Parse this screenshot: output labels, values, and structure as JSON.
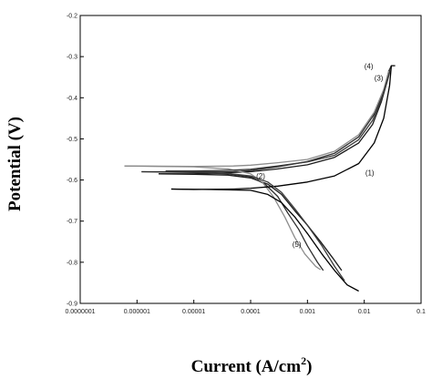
{
  "chart_data": {
    "type": "line",
    "title": "",
    "xlabel": "Current (A/cm",
    "xlabel_sup": "2",
    "xlabel_end": ")",
    "ylabel": "Potential (V)",
    "xscale": "log",
    "xlim": [
      1e-07,
      0.1
    ],
    "ylim": [
      -0.9,
      -0.2
    ],
    "grid": false,
    "x_tick_labels": [
      "0.0000001",
      "0.000001",
      "0.00001",
      "0.0001",
      "0.001",
      "0.01",
      "0.1"
    ],
    "x_ticks": [
      1e-07,
      1e-06,
      1e-05,
      0.0001,
      0.001,
      0.01,
      0.1
    ],
    "y_tick_labels": [
      "-0.2",
      "-0.3",
      "-0.4",
      "-0.5",
      "-0.6",
      "-0.7",
      "-0.8",
      "-0.9"
    ],
    "y_ticks": [
      -0.2,
      -0.3,
      -0.4,
      -0.5,
      -0.6,
      -0.7,
      -0.8,
      -0.9
    ],
    "curve_labels": [
      {
        "text": "(1)",
        "x": 0.0125,
        "y": -0.589
      },
      {
        "text": "(2)",
        "x": 0.00015,
        "y": -0.596
      },
      {
        "text": "(3)",
        "x": 0.018,
        "y": -0.358
      },
      {
        "text": "(4)",
        "x": 0.012,
        "y": -0.33
      },
      {
        "text": "(5)",
        "x": 0.00065,
        "y": -0.763
      }
    ],
    "series": [
      {
        "color": "#1a1a1a",
        "anodic": [
          [
            2.4e-06,
            -0.585
          ],
          [
            1e-05,
            -0.585
          ],
          [
            3e-05,
            -0.583
          ],
          [
            0.0001,
            -0.58
          ],
          [
            0.0003,
            -0.573
          ],
          [
            0.001,
            -0.563
          ],
          [
            0.003,
            -0.545
          ],
          [
            0.008,
            -0.51
          ],
          [
            0.014,
            -0.465
          ],
          [
            0.02,
            -0.41
          ],
          [
            0.026,
            -0.355
          ],
          [
            0.03,
            -0.322
          ]
        ],
        "cathodic": [
          [
            2.4e-06,
            -0.585
          ],
          [
            1e-05,
            -0.586
          ],
          [
            4e-05,
            -0.588
          ],
          [
            0.0001,
            -0.595
          ],
          [
            0.0002,
            -0.61
          ],
          [
            0.00035,
            -0.635
          ],
          [
            0.0006,
            -0.675
          ],
          [
            0.001,
            -0.71
          ],
          [
            0.0017,
            -0.75
          ],
          [
            0.0028,
            -0.79
          ],
          [
            0.004,
            -0.82
          ]
        ]
      },
      {
        "color": "#2e2e2e",
        "anodic": [
          [
            1.2e-06,
            -0.58
          ],
          [
            1e-05,
            -0.58
          ],
          [
            5e-05,
            -0.58
          ],
          [
            0.0001,
            -0.577
          ],
          [
            0.0003,
            -0.568
          ],
          [
            0.001,
            -0.555
          ],
          [
            0.003,
            -0.535
          ],
          [
            0.008,
            -0.495
          ],
          [
            0.015,
            -0.44
          ],
          [
            0.022,
            -0.385
          ],
          [
            0.027,
            -0.335
          ],
          [
            0.03,
            -0.322
          ]
        ],
        "cathodic": [
          [
            1.2e-06,
            -0.58
          ],
          [
            1e-05,
            -0.582
          ],
          [
            4e-05,
            -0.585
          ],
          [
            0.0001,
            -0.592
          ],
          [
            0.00018,
            -0.61
          ],
          [
            0.0003,
            -0.64
          ],
          [
            0.00045,
            -0.68
          ],
          [
            0.0007,
            -0.72
          ],
          [
            0.001,
            -0.76
          ],
          [
            0.0015,
            -0.8
          ],
          [
            0.0019,
            -0.82
          ]
        ]
      },
      {
        "color": "#8c8c8c",
        "anodic": [
          [
            6e-07,
            -0.566
          ],
          [
            1e-05,
            -0.567
          ],
          [
            5e-05,
            -0.566
          ],
          [
            0.0001,
            -0.564
          ],
          [
            0.0003,
            -0.558
          ],
          [
            0.001,
            -0.55
          ],
          [
            0.003,
            -0.53
          ],
          [
            0.008,
            -0.49
          ],
          [
            0.015,
            -0.435
          ],
          [
            0.022,
            -0.38
          ],
          [
            0.027,
            -0.335
          ]
        ],
        "cathodic": [
          [
            6e-07,
            -0.566
          ],
          [
            1e-05,
            -0.568
          ],
          [
            4e-05,
            -0.573
          ],
          [
            0.0001,
            -0.585
          ],
          [
            0.00016,
            -0.605
          ],
          [
            0.00025,
            -0.64
          ],
          [
            0.0004,
            -0.69
          ],
          [
            0.0006,
            -0.74
          ],
          [
            0.0009,
            -0.78
          ],
          [
            0.0014,
            -0.81
          ],
          [
            0.0017,
            -0.818
          ]
        ]
      },
      {
        "color": "#000000",
        "anodic": [
          [
            4e-06,
            -0.622
          ],
          [
            1e-05,
            -0.623
          ],
          [
            5e-05,
            -0.622
          ],
          [
            0.0001,
            -0.62
          ],
          [
            0.0003,
            -0.615
          ],
          [
            0.001,
            -0.605
          ],
          [
            0.003,
            -0.59
          ],
          [
            0.008,
            -0.56
          ],
          [
            0.015,
            -0.51
          ],
          [
            0.022,
            -0.45
          ],
          [
            0.028,
            -0.37
          ],
          [
            0.03,
            -0.322
          ],
          [
            0.035,
            -0.322
          ]
        ],
        "cathodic": [
          [
            4e-06,
            -0.622
          ],
          [
            2e-05,
            -0.623
          ],
          [
            0.0001,
            -0.625
          ],
          [
            0.0002,
            -0.635
          ],
          [
            0.00035,
            -0.655
          ],
          [
            0.0006,
            -0.69
          ],
          [
            0.001,
            -0.73
          ],
          [
            0.0018,
            -0.78
          ],
          [
            0.003,
            -0.82
          ],
          [
            0.005,
            -0.855
          ],
          [
            0.008,
            -0.87
          ]
        ]
      },
      {
        "color": "#3a3a3a",
        "anodic": [
          [
            3.2e-06,
            -0.578
          ],
          [
            1e-05,
            -0.578
          ],
          [
            5e-05,
            -0.576
          ],
          [
            0.0001,
            -0.574
          ],
          [
            0.0003,
            -0.566
          ],
          [
            0.001,
            -0.556
          ],
          [
            0.003,
            -0.54
          ],
          [
            0.008,
            -0.502
          ],
          [
            0.014,
            -0.455
          ],
          [
            0.02,
            -0.405
          ],
          [
            0.025,
            -0.36
          ],
          [
            0.029,
            -0.33
          ]
        ],
        "cathodic": [
          [
            3.2e-06,
            -0.578
          ],
          [
            1e-05,
            -0.58
          ],
          [
            4e-05,
            -0.584
          ],
          [
            0.0001,
            -0.59
          ],
          [
            0.0002,
            -0.605
          ],
          [
            0.00035,
            -0.63
          ],
          [
            0.0006,
            -0.67
          ],
          [
            0.001,
            -0.71
          ],
          [
            0.0018,
            -0.76
          ],
          [
            0.003,
            -0.81
          ],
          [
            0.0045,
            -0.845
          ]
        ]
      }
    ]
  }
}
